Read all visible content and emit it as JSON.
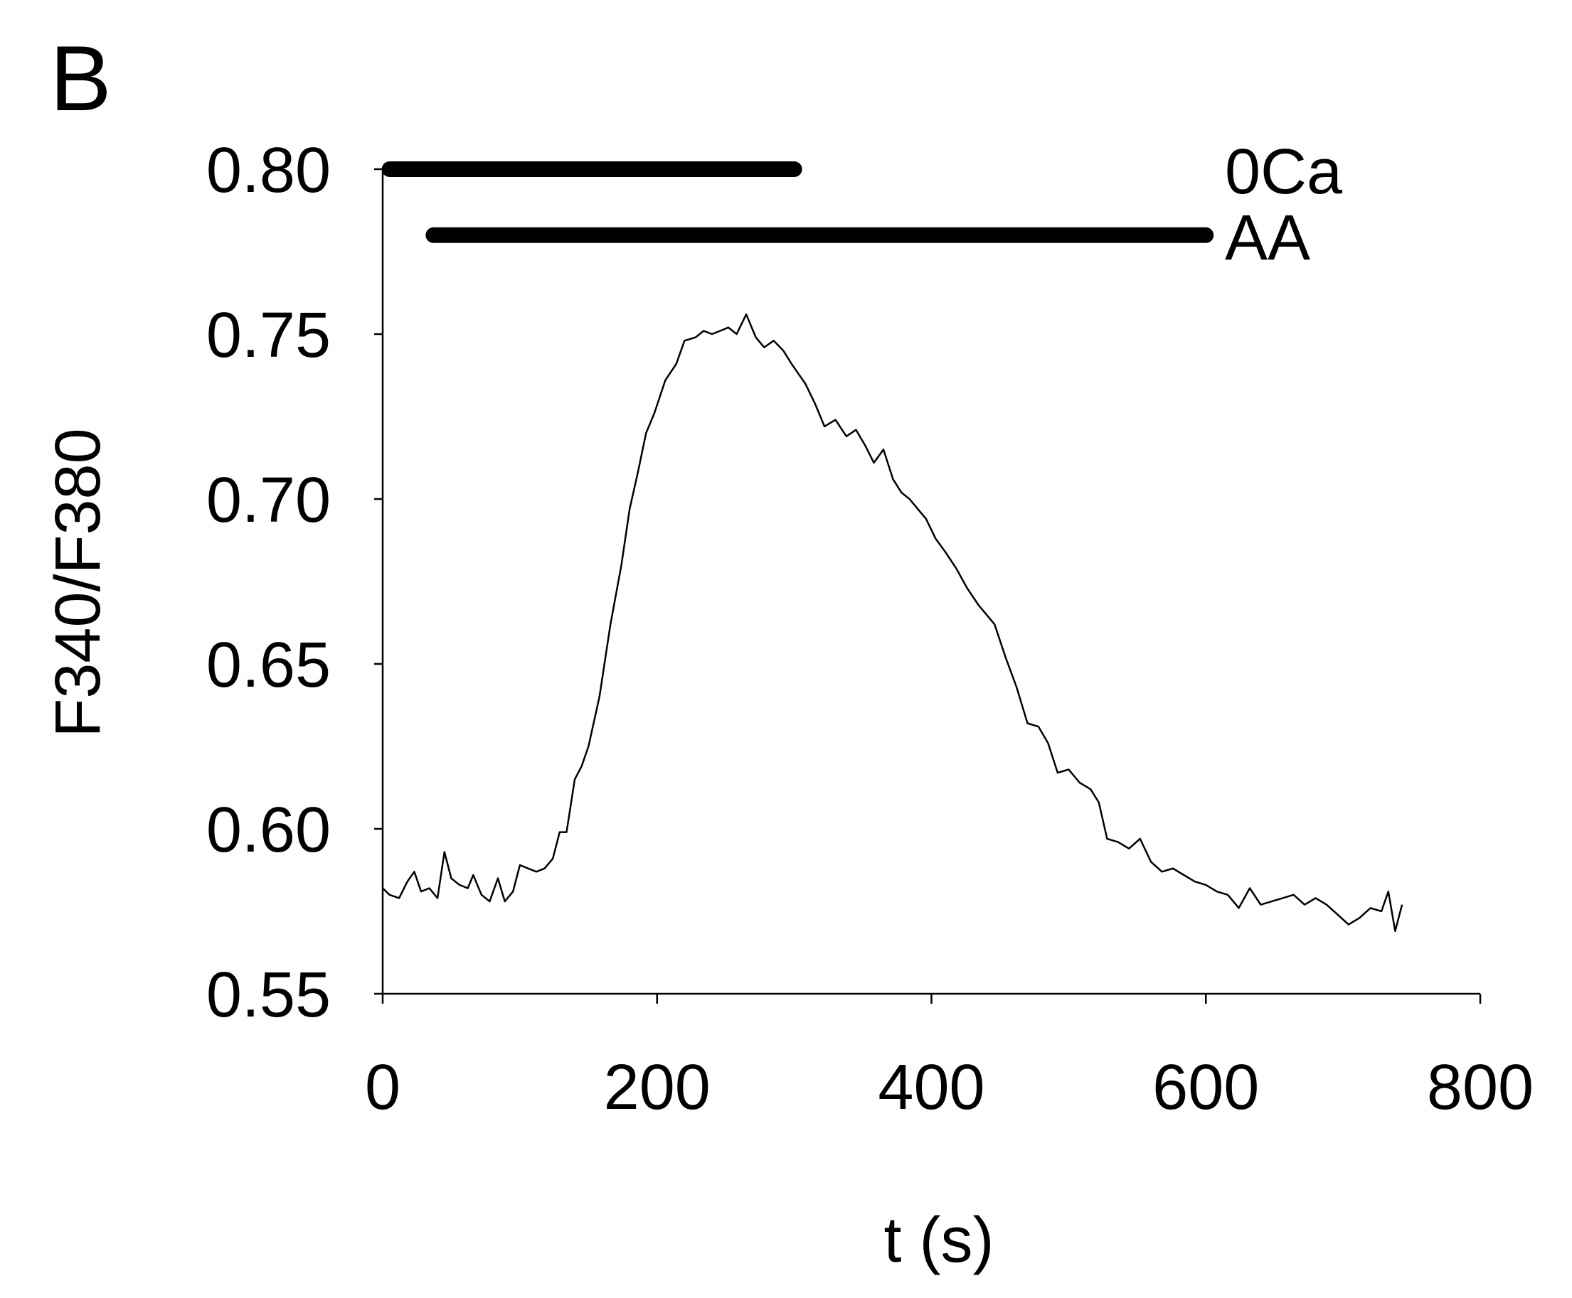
{
  "panel_label": "B",
  "colors": {
    "trace": "#000000",
    "axes": "#000000",
    "background": "#ffffff"
  },
  "chart_data": {
    "type": "line",
    "title": "",
    "xlabel": "t (s)",
    "ylabel": "F340/F380",
    "xlim": [
      0,
      800
    ],
    "ylim": [
      0.55,
      0.8
    ],
    "xticks": [
      0,
      200,
      400,
      600,
      800
    ],
    "xtick_labels": [
      "0",
      "200",
      "400",
      "600",
      "800"
    ],
    "yticks": [
      0.55,
      0.6,
      0.65,
      0.7,
      0.75,
      0.8
    ],
    "ytick_labels": [
      "0.55",
      "0.60",
      "0.65",
      "0.70",
      "0.75",
      "0.80"
    ],
    "grid": false,
    "legend": "none",
    "bars": [
      {
        "label": "0Ca",
        "start": 5,
        "end": 300,
        "y": 0.8
      },
      {
        "label": "AA",
        "start": 37,
        "end": 600,
        "y": 0.78
      }
    ],
    "series": [
      {
        "x": [
          0,
          5,
          12,
          18,
          23,
          28,
          34,
          40,
          45,
          50,
          56,
          62,
          66,
          72,
          78,
          84,
          89,
          95,
          100,
          106,
          112,
          118,
          124,
          129,
          134,
          140,
          145,
          150,
          158,
          166,
          174,
          180,
          186,
          192,
          198,
          206,
          214,
          220,
          228,
          234,
          240,
          246,
          252,
          258,
          265,
          272,
          278,
          285,
          292,
          298,
          303,
          308,
          315,
          322,
          330,
          338,
          345,
          352,
          358,
          365,
          372,
          378,
          384,
          390,
          396,
          403,
          410,
          418,
          426,
          434,
          440,
          446,
          454,
          462,
          470,
          478,
          485,
          492,
          500,
          508,
          516,
          522,
          528,
          536,
          544,
          552,
          560,
          568,
          576,
          584,
          592,
          600,
          608,
          616,
          624,
          632,
          640,
          648,
          656,
          664,
          672,
          680,
          688,
          696,
          704,
          712,
          720,
          728,
          733,
          738,
          743
        ],
        "y": [
          0.582,
          0.58,
          0.579,
          0.584,
          0.587,
          0.581,
          0.582,
          0.579,
          0.593,
          0.585,
          0.583,
          0.582,
          0.586,
          0.58,
          0.578,
          0.585,
          0.578,
          0.581,
          0.589,
          0.588,
          0.587,
          0.588,
          0.591,
          0.599,
          0.599,
          0.615,
          0.619,
          0.625,
          0.64,
          0.662,
          0.68,
          0.697,
          0.708,
          0.72,
          0.726,
          0.736,
          0.741,
          0.748,
          0.749,
          0.751,
          0.75,
          0.751,
          0.752,
          0.75,
          0.756,
          0.749,
          0.746,
          0.748,
          0.745,
          0.741,
          0.738,
          0.735,
          0.729,
          0.722,
          0.724,
          0.719,
          0.721,
          0.716,
          0.711,
          0.715,
          0.706,
          0.702,
          0.7,
          0.697,
          0.694,
          0.688,
          0.684,
          0.679,
          0.673,
          0.668,
          0.665,
          0.662,
          0.652,
          0.643,
          0.632,
          0.631,
          0.626,
          0.617,
          0.618,
          0.614,
          0.612,
          0.608,
          0.597,
          0.596,
          0.594,
          0.597,
          0.59,
          0.587,
          0.588,
          0.586,
          0.584,
          0.583,
          0.581,
          0.58,
          0.576,
          0.582,
          0.577,
          0.578,
          0.579,
          0.58,
          0.577,
          0.579,
          0.577,
          0.574,
          0.571,
          0.573,
          0.576,
          0.575,
          0.581,
          0.569,
          0.577
        ]
      }
    ]
  }
}
